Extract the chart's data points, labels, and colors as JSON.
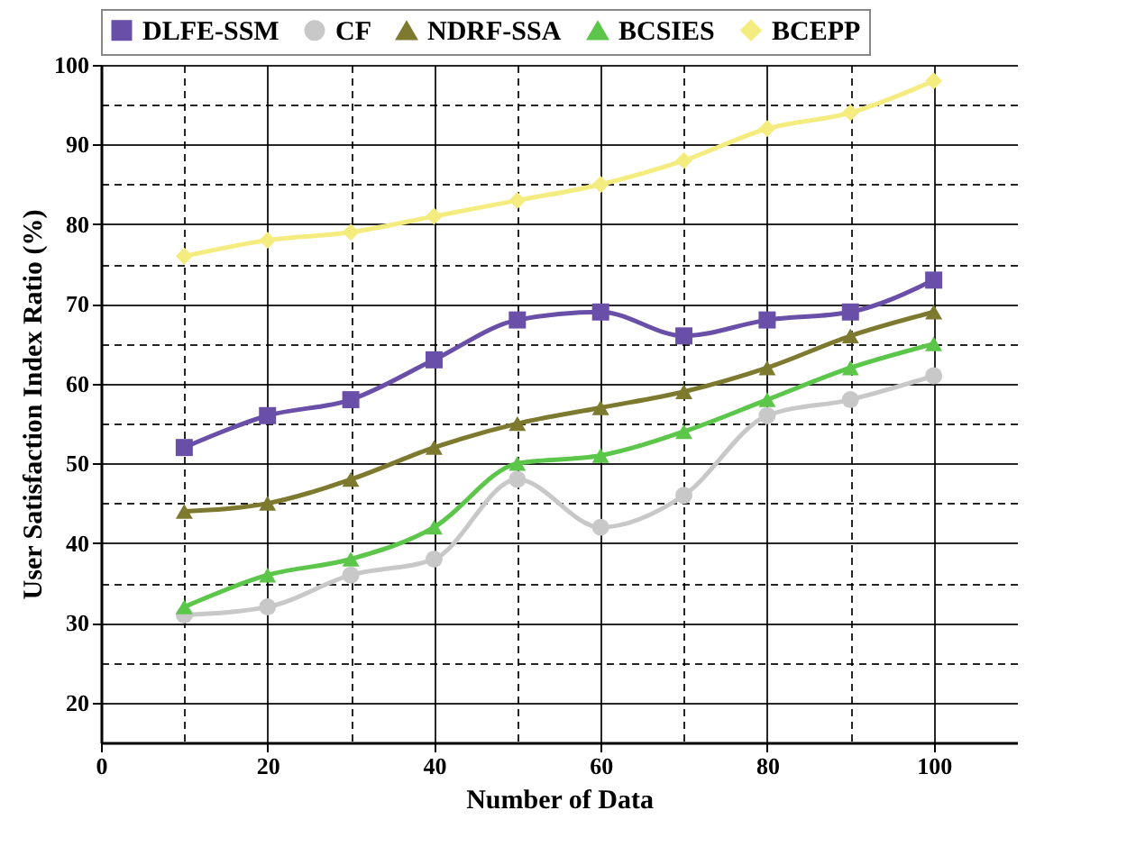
{
  "chart_data": {
    "type": "line",
    "xlabel": "Number of Data",
    "ylabel": "User Satisfaction Index Ratio (%)",
    "x": [
      10,
      20,
      30,
      40,
      50,
      60,
      70,
      80,
      90,
      100
    ],
    "xlim": [
      0,
      110
    ],
    "ylim": [
      15,
      100
    ],
    "xticks": [
      0,
      {
        "value": 10,
        "label": null
      },
      20,
      {
        "value": 30,
        "label": null
      },
      40,
      {
        "value": 50,
        "label": null
      },
      60,
      {
        "value": 70,
        "label": null
      },
      80,
      {
        "value": 90,
        "label": null
      },
      100
    ],
    "yticks": [
      20,
      {
        "value": 25,
        "label": null
      },
      30,
      {
        "value": 35,
        "label": null
      },
      40,
      {
        "value": 45,
        "label": null
      },
      50,
      {
        "value": 55,
        "label": null
      },
      60,
      {
        "value": 65,
        "label": null
      },
      70,
      {
        "value": 75,
        "label": null
      },
      80,
      {
        "value": 85,
        "label": null
      },
      90,
      {
        "value": 95,
        "label": null
      },
      100
    ],
    "grid": true,
    "legend": "top",
    "line_style": "solid",
    "series": [
      {
        "name": "DLFE-SSM",
        "color": "#6a4fa8",
        "marker": "square",
        "values": [
          52,
          56,
          58,
          63,
          68,
          69,
          66,
          68,
          69,
          73
        ]
      },
      {
        "name": "CF",
        "color": "#c8c8c8",
        "marker": "circle",
        "values": [
          31,
          32,
          36,
          38,
          48,
          42,
          46,
          56,
          58,
          61
        ]
      },
      {
        "name": "NDRF-SSA",
        "color": "#7d7a30",
        "marker": "triangle",
        "values": [
          44,
          45,
          48,
          52,
          55,
          57,
          59,
          62,
          66,
          69
        ]
      },
      {
        "name": "BCSIES",
        "color": "#5cc64a",
        "marker": "triangle",
        "values": [
          32,
          36,
          38,
          42,
          50,
          51,
          54,
          58,
          62,
          65
        ]
      },
      {
        "name": "BCEPP",
        "color": "#f5ec80",
        "marker": "diamond",
        "values": [
          76,
          78,
          79,
          81,
          83,
          85,
          88,
          92,
          94,
          98
        ]
      }
    ]
  }
}
